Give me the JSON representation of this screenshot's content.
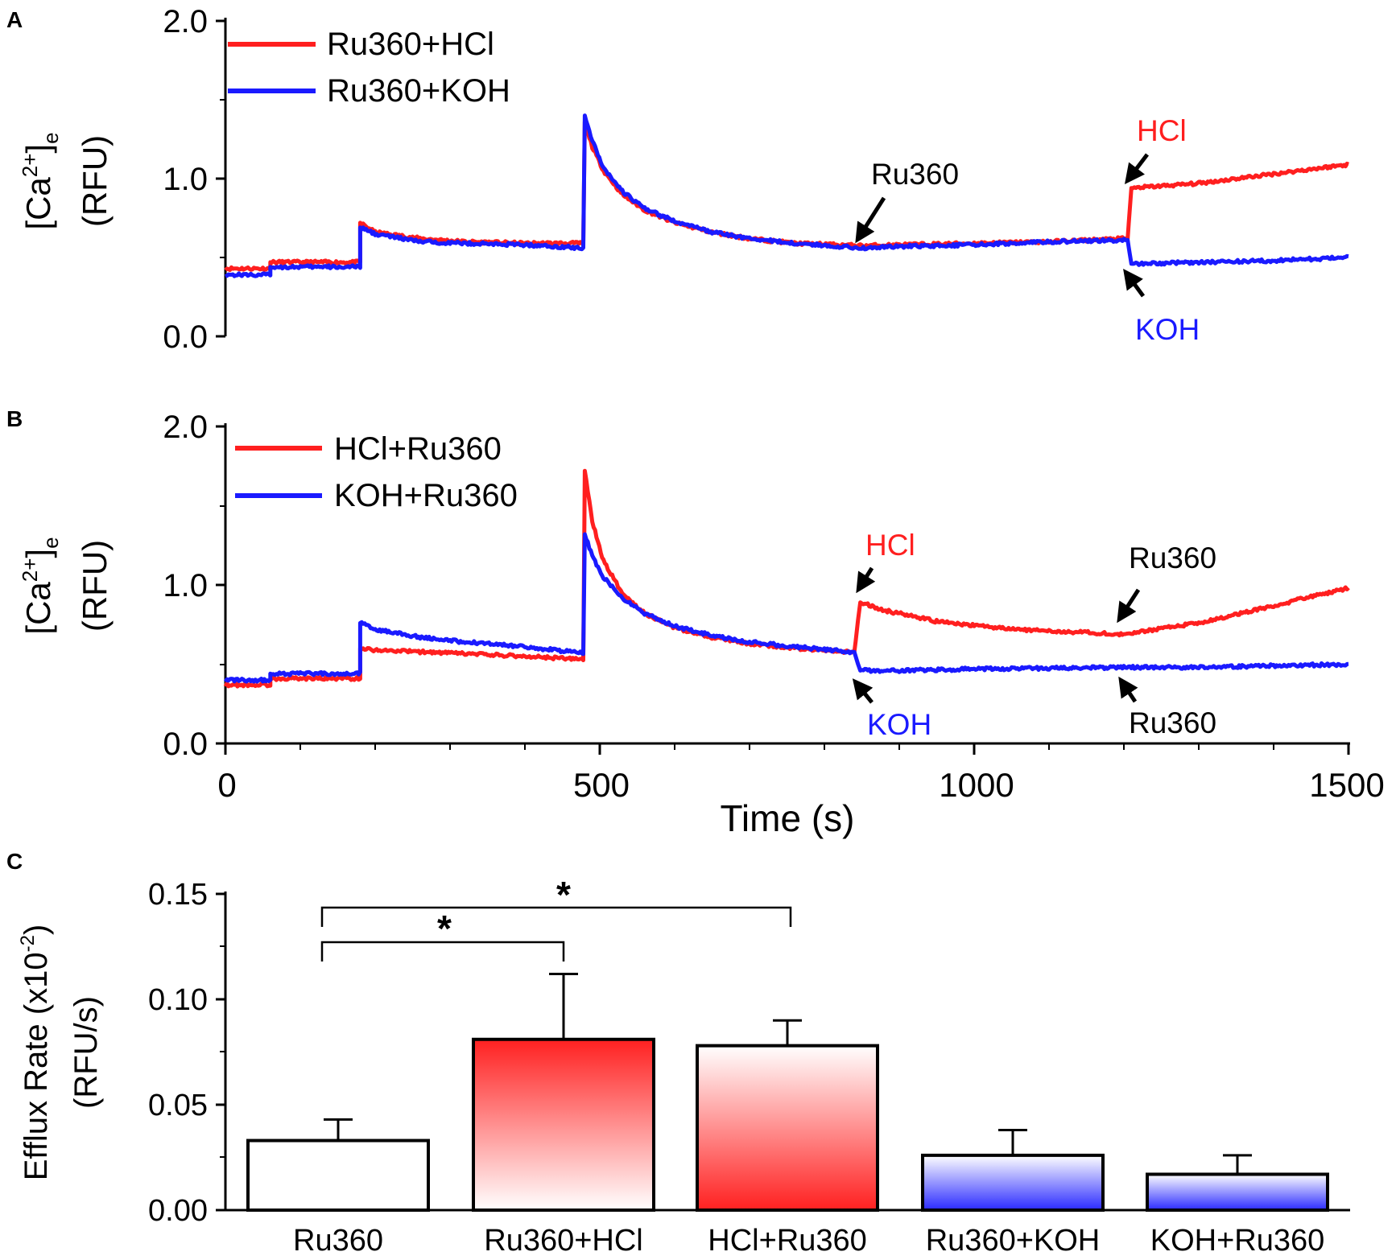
{
  "chart_data": [
    {
      "panel": "A",
      "type": "line",
      "xlim": [
        0,
        1500
      ],
      "ylim": [
        0,
        2.0
      ],
      "yticks": [
        "0.0",
        "1.0",
        "2.0"
      ],
      "ylabel_main": "[Ca",
      "ylabel_sup": "2+",
      "ylabel_tail": "]",
      "ylabel_sub": "e",
      "ylabel_units": "(RFU)",
      "legend": [
        "Ru360+HCl",
        "Ru360+KOH"
      ],
      "series": [
        {
          "name": "Ru360+HCl",
          "color": "#ff1f1f",
          "points": [
            [
              0,
              0.43
            ],
            [
              60,
              0.43
            ],
            [
              60,
              0.47
            ],
            [
              180,
              0.47
            ],
            [
              180,
              0.72
            ],
            [
              200,
              0.66
            ],
            [
              260,
              0.62
            ],
            [
              320,
              0.6
            ],
            [
              400,
              0.59
            ],
            [
              478,
              0.59
            ],
            [
              480,
              1.36
            ],
            [
              490,
              1.2
            ],
            [
              505,
              1.05
            ],
            [
              530,
              0.9
            ],
            [
              560,
              0.8
            ],
            [
              600,
              0.72
            ],
            [
              650,
              0.66
            ],
            [
              700,
              0.62
            ],
            [
              760,
              0.59
            ],
            [
              820,
              0.58
            ],
            [
              850,
              0.575
            ],
            [
              900,
              0.58
            ],
            [
              1000,
              0.59
            ],
            [
              1100,
              0.6
            ],
            [
              1200,
              0.62
            ],
            [
              1205,
              0.62
            ],
            [
              1208,
              0.81
            ],
            [
              1210,
              0.94
            ],
            [
              1300,
              0.97
            ],
            [
              1400,
              1.03
            ],
            [
              1500,
              1.09
            ]
          ]
        },
        {
          "name": "Ru360+KOH",
          "color": "#1a1aff",
          "points": [
            [
              0,
              0.39
            ],
            [
              60,
              0.39
            ],
            [
              60,
              0.44
            ],
            [
              180,
              0.44
            ],
            [
              180,
              0.69
            ],
            [
              200,
              0.65
            ],
            [
              260,
              0.6
            ],
            [
              320,
              0.59
            ],
            [
              400,
              0.58
            ],
            [
              478,
              0.56
            ],
            [
              480,
              1.4
            ],
            [
              490,
              1.24
            ],
            [
              505,
              1.07
            ],
            [
              530,
              0.92
            ],
            [
              560,
              0.81
            ],
            [
              600,
              0.73
            ],
            [
              650,
              0.66
            ],
            [
              700,
              0.62
            ],
            [
              760,
              0.59
            ],
            [
              820,
              0.57
            ],
            [
              850,
              0.56
            ],
            [
              900,
              0.57
            ],
            [
              1000,
              0.58
            ],
            [
              1100,
              0.6
            ],
            [
              1200,
              0.61
            ],
            [
              1205,
              0.61
            ],
            [
              1208,
              0.52
            ],
            [
              1210,
              0.46
            ],
            [
              1300,
              0.47
            ],
            [
              1400,
              0.48
            ],
            [
              1500,
              0.5
            ]
          ]
        }
      ],
      "annotations": [
        {
          "text": "Ru360",
          "color": "#000000"
        },
        {
          "text": "HCl",
          "color": "#ff1f1f"
        },
        {
          "text": "KOH",
          "color": "#1a1aff"
        }
      ]
    },
    {
      "panel": "B",
      "type": "line",
      "xlim": [
        0,
        1500
      ],
      "ylim": [
        0,
        2.0
      ],
      "yticks": [
        "0.0",
        "1.0",
        "2.0"
      ],
      "xticks": [
        "0",
        "500",
        "1000",
        "1500"
      ],
      "xlabel": "Time (s)",
      "ylabel_main": "[Ca",
      "ylabel_sup": "2+",
      "ylabel_tail": "]",
      "ylabel_sub": "e",
      "ylabel_units": "(RFU)",
      "legend": [
        "HCl+Ru360",
        "KOH+Ru360"
      ],
      "series": [
        {
          "name": "HCl+Ru360",
          "color": "#ff1f1f",
          "points": [
            [
              0,
              0.37
            ],
            [
              60,
              0.37
            ],
            [
              60,
              0.41
            ],
            [
              180,
              0.41
            ],
            [
              180,
              0.6
            ],
            [
              200,
              0.59
            ],
            [
              300,
              0.57
            ],
            [
              400,
              0.55
            ],
            [
              478,
              0.53
            ],
            [
              480,
              1.72
            ],
            [
              490,
              1.4
            ],
            [
              505,
              1.15
            ],
            [
              530,
              0.95
            ],
            [
              560,
              0.82
            ],
            [
              600,
              0.73
            ],
            [
              650,
              0.67
            ],
            [
              700,
              0.63
            ],
            [
              760,
              0.6
            ],
            [
              820,
              0.58
            ],
            [
              840,
              0.575
            ],
            [
              845,
              0.78
            ],
            [
              848,
              0.89
            ],
            [
              880,
              0.84
            ],
            [
              950,
              0.77
            ],
            [
              1050,
              0.72
            ],
            [
              1150,
              0.7
            ],
            [
              1200,
              0.69
            ],
            [
              1300,
              0.76
            ],
            [
              1400,
              0.87
            ],
            [
              1500,
              0.98
            ]
          ]
        },
        {
          "name": "KOH+Ru360",
          "color": "#1a1aff",
          "points": [
            [
              0,
              0.4
            ],
            [
              60,
              0.4
            ],
            [
              60,
              0.44
            ],
            [
              180,
              0.44
            ],
            [
              180,
              0.76
            ],
            [
              200,
              0.72
            ],
            [
              260,
              0.67
            ],
            [
              320,
              0.64
            ],
            [
              400,
              0.61
            ],
            [
              478,
              0.57
            ],
            [
              480,
              1.32
            ],
            [
              490,
              1.18
            ],
            [
              505,
              1.05
            ],
            [
              530,
              0.92
            ],
            [
              560,
              0.82
            ],
            [
              600,
              0.74
            ],
            [
              650,
              0.68
            ],
            [
              700,
              0.64
            ],
            [
              760,
              0.61
            ],
            [
              820,
              0.585
            ],
            [
              840,
              0.575
            ],
            [
              845,
              0.5
            ],
            [
              848,
              0.46
            ],
            [
              900,
              0.46
            ],
            [
              1000,
              0.47
            ],
            [
              1100,
              0.475
            ],
            [
              1200,
              0.48
            ],
            [
              1300,
              0.48
            ],
            [
              1400,
              0.49
            ],
            [
              1500,
              0.5
            ]
          ]
        }
      ],
      "annotations": [
        {
          "text": "HCl",
          "color": "#ff1f1f"
        },
        {
          "text": "KOH",
          "color": "#1a1aff"
        },
        {
          "text": "Ru360",
          "color": "#000000"
        },
        {
          "text": "Ru360",
          "color": "#000000"
        }
      ]
    },
    {
      "panel": "C",
      "type": "bar",
      "ylim": [
        0,
        0.15
      ],
      "yticks": [
        "0.00",
        "0.05",
        "0.10",
        "0.15"
      ],
      "ylabel_main": "Efflux Rate (x10",
      "ylabel_sup": "-2",
      "ylabel_tail": ")",
      "ylabel_units": "(RFU/s)",
      "categories": [
        "Ru360",
        "Ru360+HCl",
        "HCl+Ru360",
        "Ru360+KOH",
        "KOH+Ru360"
      ],
      "values": [
        0.033,
        0.081,
        0.078,
        0.026,
        0.017
      ],
      "errors": [
        0.01,
        0.031,
        0.012,
        0.012,
        0.009
      ],
      "fills": [
        "none",
        "red-bottom-fade",
        "red-top-fade",
        "blue-bottom-fade",
        "blue-bottom-fade"
      ],
      "significance": [
        {
          "from": 0,
          "to": 1,
          "label": "*"
        },
        {
          "from": 0,
          "to": 2,
          "label": "*"
        }
      ]
    }
  ],
  "panel_labels": [
    "A",
    "B",
    "C"
  ]
}
